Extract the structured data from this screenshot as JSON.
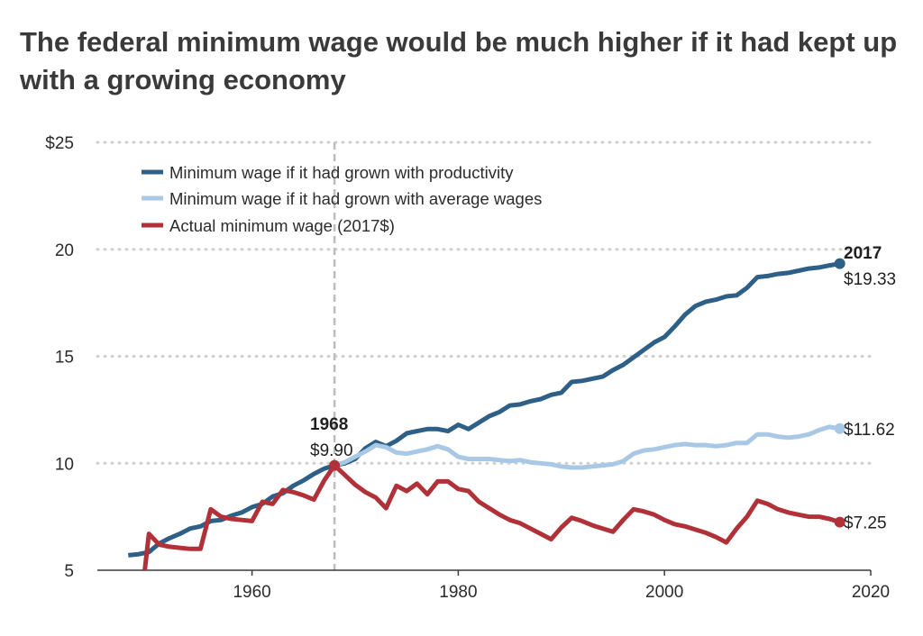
{
  "title": "The federal minimum wage would be much higher if it had kept up with a growing economy",
  "chart_data": {
    "type": "line",
    "title": "The federal minimum wage would be much higher if it had kept up with a growing economy",
    "xlabel": "",
    "ylabel": "",
    "xlim": [
      1945,
      2020
    ],
    "ylim": [
      5,
      25
    ],
    "x_ticks": [
      1960,
      1980,
      2000,
      2020
    ],
    "x_tick_labels": [
      "1960",
      "1980",
      "2000",
      "2020"
    ],
    "y_ticks": [
      5,
      10,
      15,
      20,
      25
    ],
    "y_tick_labels": [
      "5",
      "10",
      "15",
      "20",
      "$25"
    ],
    "grid": "horizontal dotted",
    "legend_position": "top-left",
    "reference_line_x": 1968,
    "series": [
      {
        "name": "Minimum wage if it had grown with productivity",
        "color": "#2e5f87",
        "x": [
          1948,
          1949,
          1950,
          1951,
          1952,
          1953,
          1954,
          1955,
          1956,
          1957,
          1958,
          1959,
          1960,
          1961,
          1962,
          1963,
          1964,
          1965,
          1966,
          1967,
          1968,
          1969,
          1970,
          1971,
          1972,
          1973,
          1974,
          1975,
          1976,
          1977,
          1978,
          1979,
          1980,
          1981,
          1982,
          1983,
          1984,
          1985,
          1986,
          1987,
          1988,
          1989,
          1990,
          1991,
          1992,
          1993,
          1994,
          1995,
          1996,
          1997,
          1998,
          1999,
          2000,
          2001,
          2002,
          2003,
          2004,
          2005,
          2006,
          2007,
          2008,
          2009,
          2010,
          2011,
          2012,
          2013,
          2014,
          2015,
          2016,
          2017
        ],
        "values": [
          5.7,
          5.75,
          5.85,
          6.25,
          6.5,
          6.7,
          6.95,
          7.05,
          7.3,
          7.35,
          7.55,
          7.7,
          7.95,
          8.1,
          8.45,
          8.6,
          8.95,
          9.2,
          9.5,
          9.75,
          9.9,
          10.0,
          10.2,
          10.7,
          11.0,
          10.8,
          11.05,
          11.4,
          11.5,
          11.6,
          11.6,
          11.5,
          11.8,
          11.6,
          11.9,
          12.2,
          12.4,
          12.7,
          12.75,
          12.9,
          13.0,
          13.2,
          13.3,
          13.8,
          13.85,
          13.95,
          14.05,
          14.35,
          14.6,
          14.95,
          15.3,
          15.65,
          15.9,
          16.4,
          16.95,
          17.35,
          17.55,
          17.65,
          17.8,
          17.85,
          18.2,
          18.7,
          18.75,
          18.85,
          18.9,
          19.0,
          19.1,
          19.15,
          19.25,
          19.33
        ]
      },
      {
        "name": "Minimum wage if it had grown with average wages",
        "color": "#a8c8e6",
        "x": [
          1968,
          1969,
          1970,
          1971,
          1972,
          1973,
          1974,
          1975,
          1976,
          1977,
          1978,
          1979,
          1980,
          1981,
          1982,
          1983,
          1984,
          1985,
          1986,
          1987,
          1988,
          1989,
          1990,
          1991,
          1992,
          1993,
          1994,
          1995,
          1996,
          1997,
          1998,
          1999,
          2000,
          2001,
          2002,
          2003,
          2004,
          2005,
          2006,
          2007,
          2008,
          2009,
          2010,
          2011,
          2012,
          2013,
          2014,
          2015,
          2016,
          2017
        ],
        "values": [
          9.9,
          10.05,
          10.3,
          10.55,
          10.85,
          10.75,
          10.5,
          10.45,
          10.55,
          10.65,
          10.8,
          10.65,
          10.3,
          10.2,
          10.2,
          10.2,
          10.15,
          10.1,
          10.15,
          10.05,
          10.0,
          9.95,
          9.85,
          9.8,
          9.8,
          9.85,
          9.9,
          9.95,
          10.1,
          10.45,
          10.6,
          10.65,
          10.75,
          10.85,
          10.9,
          10.85,
          10.85,
          10.8,
          10.85,
          10.95,
          10.95,
          11.35,
          11.35,
          11.25,
          11.2,
          11.25,
          11.35,
          11.55,
          11.7,
          11.62
        ]
      },
      {
        "name": "Actual minimum wage (2017$)",
        "color": "#b03238",
        "x": [
          1949.6,
          1950,
          1951,
          1952,
          1953,
          1954,
          1955,
          1956,
          1957,
          1958,
          1959,
          1960,
          1961,
          1962,
          1963,
          1964,
          1965,
          1966,
          1967,
          1968,
          1969,
          1970,
          1971,
          1972,
          1973,
          1974,
          1975,
          1976,
          1977,
          1978,
          1979,
          1980,
          1981,
          1982,
          1983,
          1984,
          1985,
          1986,
          1987,
          1988,
          1989,
          1990,
          1991,
          1992,
          1993,
          1994,
          1995,
          1996,
          1997,
          1998,
          1999,
          2000,
          2001,
          2002,
          2003,
          2004,
          2005,
          2006,
          2007,
          2008,
          2009,
          2010,
          2011,
          2012,
          2013,
          2014,
          2015,
          2016,
          2017
        ],
        "values": [
          5.0,
          6.7,
          6.2,
          6.1,
          6.05,
          6.0,
          6.0,
          7.85,
          7.5,
          7.4,
          7.35,
          7.3,
          8.2,
          8.1,
          8.75,
          8.65,
          8.5,
          8.3,
          9.2,
          9.9,
          9.45,
          9.0,
          8.65,
          8.4,
          7.9,
          8.95,
          8.7,
          9.05,
          8.55,
          9.15,
          9.15,
          8.8,
          8.7,
          8.2,
          7.9,
          7.6,
          7.35,
          7.2,
          6.95,
          6.7,
          6.45,
          7.0,
          7.45,
          7.3,
          7.1,
          6.95,
          6.8,
          7.35,
          7.85,
          7.75,
          7.6,
          7.35,
          7.15,
          7.05,
          6.9,
          6.75,
          6.55,
          6.3,
          6.95,
          7.5,
          8.25,
          8.1,
          7.85,
          7.7,
          7.6,
          7.5,
          7.5,
          7.4,
          7.25
        ]
      }
    ],
    "annotations": [
      {
        "label": "1968",
        "value": "$9.90",
        "x": 1968,
        "y": 9.9
      },
      {
        "label": "2017",
        "value": "$19.33",
        "x": 2017,
        "y": 19.33
      },
      {
        "label": "",
        "value": "$11.62",
        "x": 2017,
        "y": 11.62
      },
      {
        "label": "",
        "value": "$7.25",
        "x": 2017,
        "y": 7.25
      }
    ]
  }
}
